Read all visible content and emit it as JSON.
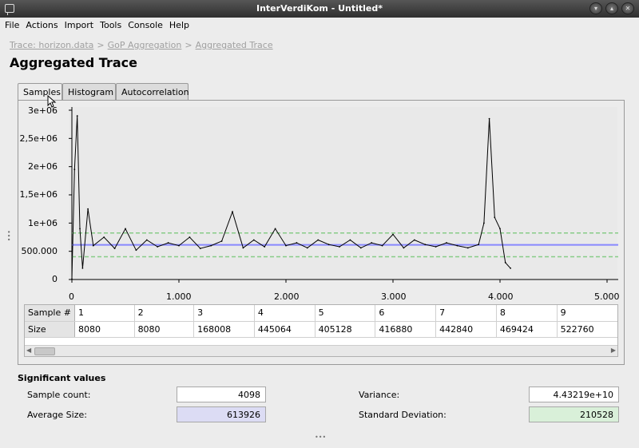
{
  "window": {
    "title": "InterVerdiKom - Untitled*",
    "buttons": [
      "minimize",
      "maximize",
      "close"
    ]
  },
  "menu": [
    "File",
    "Actions",
    "Import",
    "Tools",
    "Console",
    "Help"
  ],
  "breadcrumb": [
    "Trace: horizon.data",
    "GoP Aggregation",
    "Aggregated Trace"
  ],
  "breadcrumb_separator": ">",
  "page_title": "Aggregated Trace",
  "tabs": [
    {
      "label": "Samples",
      "active": true
    },
    {
      "label": "Histogram",
      "active": false
    },
    {
      "label": "Autocorrelation",
      "active": false
    }
  ],
  "chart_data": {
    "type": "line",
    "title": "",
    "xlabel": "",
    "ylabel": "",
    "xlim": [
      0,
      5000
    ],
    "ylim": [
      0,
      3000000
    ],
    "x_ticks": [
      "0",
      "1.000",
      "2.000",
      "3.000",
      "4.000",
      "5.000"
    ],
    "y_ticks": [
      "0",
      "500.000",
      "1e+06",
      "1,5e+06",
      "2e+06",
      "2,5e+06",
      "3e+06"
    ],
    "series": [
      {
        "color": "#000000",
        "x": [
          0,
          25,
          50,
          75,
          100,
          150,
          200,
          300,
          400,
          500,
          600,
          700,
          800,
          900,
          1000,
          1100,
          1200,
          1300,
          1400,
          1500,
          1600,
          1700,
          1800,
          1900,
          2000,
          2100,
          2200,
          2300,
          2400,
          2500,
          2600,
          2700,
          2800,
          2900,
          3000,
          3100,
          3200,
          3300,
          3400,
          3500,
          3600,
          3700,
          3800,
          3850,
          3900,
          3950,
          4000,
          4050,
          4098
        ],
        "y": [
          8080,
          1950000,
          2900000,
          900000,
          200000,
          1250000,
          600000,
          750000,
          550000,
          900000,
          520000,
          700000,
          580000,
          650000,
          600000,
          750000,
          550000,
          600000,
          680000,
          1200000,
          560000,
          700000,
          580000,
          900000,
          600000,
          650000,
          560000,
          700000,
          620000,
          580000,
          700000,
          560000,
          650000,
          600000,
          800000,
          560000,
          700000,
          620000,
          580000,
          650000,
          600000,
          560000,
          620000,
          1000000,
          2850000,
          1100000,
          900000,
          300000,
          200000
        ]
      }
    ],
    "reference_lines": [
      {
        "type": "mean",
        "y": 613926,
        "color": "#8888ff"
      },
      {
        "type": "upper",
        "y": 824454,
        "color": "#88cc88"
      },
      {
        "type": "lower",
        "y": 403398,
        "color": "#88cc88"
      }
    ]
  },
  "table": {
    "row_headers": [
      "Sample #",
      "Size"
    ],
    "sample_numbers": [
      "1",
      "2",
      "3",
      "4",
      "5",
      "6",
      "7",
      "8",
      "9"
    ],
    "sizes": [
      "8080",
      "8080",
      "168008",
      "445064",
      "405128",
      "416880",
      "442840",
      "469424",
      "522760"
    ]
  },
  "significant": {
    "title": "Significant values",
    "sample_count_label": "Sample count:",
    "sample_count": "4098",
    "average_size_label": "Average Size:",
    "average_size": "613926",
    "variance_label": "Variance:",
    "variance": "4.43219e+10",
    "std_dev_label": "Standard Deviation:",
    "std_dev": "210528"
  },
  "colors": {
    "mean_line": "#8888ff",
    "bound_line": "#88cc88",
    "average_box": "#dcdcf4",
    "std_box": "#d9f0d9"
  }
}
